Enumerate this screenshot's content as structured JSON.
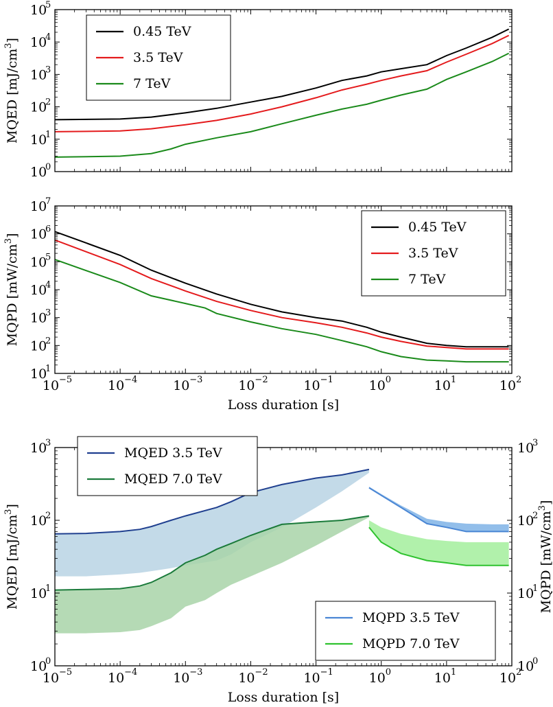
{
  "chart_data": [
    {
      "type": "line",
      "panel": "top",
      "xscale": "log",
      "yscale": "log",
      "xlim": [
        1e-05,
        100
      ],
      "ylim": [
        1,
        100000
      ],
      "xlabel": "",
      "ylabel": "MQED [mJ/cm³]",
      "ylabel_parts": [
        "MQED [mJ/cm",
        "3",
        "]"
      ],
      "legend_position": "top-left",
      "y_ticks": [
        {
          "base": "10",
          "exp": "0"
        },
        {
          "base": "10",
          "exp": "1"
        },
        {
          "base": "10",
          "exp": "2"
        },
        {
          "base": "10",
          "exp": "3"
        },
        {
          "base": "10",
          "exp": "4"
        },
        {
          "base": "10",
          "exp": "5"
        }
      ],
      "series": [
        {
          "name": "0.45 TeV",
          "color": "#000000",
          "x": [
            1e-05,
            0.0001,
            0.0003,
            0.001,
            0.003,
            0.01,
            0.03,
            0.1,
            0.25,
            0.6,
            1,
            2,
            5,
            10,
            20,
            50,
            90
          ],
          "y": [
            40,
            42,
            48,
            65,
            90,
            140,
            210,
            380,
            650,
            900,
            1200,
            1500,
            2000,
            3800,
            6500,
            14000,
            25000
          ]
        },
        {
          "name": "3.5 TeV",
          "color": "#e41a1c",
          "x": [
            1e-05,
            0.0001,
            0.0003,
            0.001,
            0.003,
            0.01,
            0.03,
            0.1,
            0.25,
            0.6,
            1,
            2,
            5,
            10,
            20,
            50,
            90
          ],
          "y": [
            17,
            18,
            21,
            28,
            38,
            60,
            100,
            190,
            330,
            500,
            650,
            900,
            1300,
            2400,
            4200,
            9000,
            16000
          ]
        },
        {
          "name": "7 TeV",
          "color": "#1a8a1a",
          "x": [
            1e-05,
            0.0001,
            0.0003,
            0.0006,
            0.001,
            0.003,
            0.01,
            0.03,
            0.1,
            0.25,
            0.6,
            1,
            2,
            5,
            10,
            20,
            50,
            90
          ],
          "y": [
            2.8,
            3,
            3.6,
            5,
            7,
            11,
            17,
            30,
            55,
            85,
            120,
            160,
            230,
            350,
            700,
            1200,
            2500,
            4500
          ]
        }
      ]
    },
    {
      "type": "line",
      "panel": "middle",
      "xscale": "log",
      "yscale": "log",
      "xlim": [
        1e-05,
        100
      ],
      "ylim": [
        10,
        10000000
      ],
      "xlabel": "Loss duration [s]",
      "ylabel": "MQPD [mW/cm³]",
      "ylabel_parts": [
        "MQPD [mW/cm",
        "3",
        "]"
      ],
      "legend_position": "top-right",
      "x_ticks": [
        {
          "base": "10",
          "exp": "−5"
        },
        {
          "base": "10",
          "exp": "−4"
        },
        {
          "base": "10",
          "exp": "−3"
        },
        {
          "base": "10",
          "exp": "−2"
        },
        {
          "base": "10",
          "exp": "−1"
        },
        {
          "base": "10",
          "exp": "0"
        },
        {
          "base": "10",
          "exp": "1"
        },
        {
          "base": "10",
          "exp": "2"
        }
      ],
      "y_ticks": [
        {
          "base": "10",
          "exp": "1"
        },
        {
          "base": "10",
          "exp": "2"
        },
        {
          "base": "10",
          "exp": "3"
        },
        {
          "base": "10",
          "exp": "4"
        },
        {
          "base": "10",
          "exp": "5"
        },
        {
          "base": "10",
          "exp": "6"
        },
        {
          "base": "10",
          "exp": "7"
        }
      ],
      "series": [
        {
          "name": "0.45 TeV",
          "color": "#000000",
          "x": [
            1e-05,
            0.0001,
            0.0003,
            0.001,
            0.003,
            0.01,
            0.03,
            0.1,
            0.25,
            0.6,
            1,
            2,
            5,
            10,
            20,
            50,
            90
          ],
          "y": [
            1200000,
            170000,
            50000,
            17000,
            7000,
            3000,
            1600,
            1000,
            750,
            450,
            300,
            200,
            120,
            100,
            90,
            90,
            90
          ]
        },
        {
          "name": "3.5 TeV",
          "color": "#e41a1c",
          "x": [
            1e-05,
            0.0001,
            0.0003,
            0.001,
            0.003,
            0.01,
            0.03,
            0.1,
            0.25,
            0.6,
            1,
            2,
            5,
            10,
            20,
            50,
            90
          ],
          "y": [
            600000,
            80000,
            25000,
            9000,
            3800,
            1800,
            1000,
            650,
            450,
            280,
            200,
            140,
            95,
            85,
            75,
            75,
            75
          ]
        },
        {
          "name": "7 TeV",
          "color": "#1a8a1a",
          "x": [
            1e-05,
            0.0001,
            0.0003,
            0.001,
            0.002,
            0.003,
            0.01,
            0.03,
            0.1,
            0.25,
            0.6,
            1,
            2,
            5,
            10,
            20,
            50,
            90
          ],
          "y": [
            120000,
            18000,
            6000,
            3200,
            2200,
            1400,
            700,
            400,
            250,
            150,
            90,
            60,
            40,
            30,
            28,
            26,
            26,
            26
          ]
        }
      ]
    },
    {
      "type": "area",
      "panel": "bottom",
      "xscale": "log",
      "yscale": "log",
      "xlim": [
        1e-05,
        100
      ],
      "ylim": [
        1,
        1000
      ],
      "xlabel": "Loss duration [s]",
      "ylabel": "MQED [mJ/cm³]",
      "ylabel_parts": [
        "MQED [mJ/cm",
        "3",
        "]"
      ],
      "y2label": "MQPD [mW/cm³]",
      "y2label_parts": [
        "MQPD [mW/cm",
        "3",
        "]"
      ],
      "legend_position": "top-left / bottom-right",
      "x_ticks": [
        {
          "base": "10",
          "exp": "−5"
        },
        {
          "base": "10",
          "exp": "−4"
        },
        {
          "base": "10",
          "exp": "−3"
        },
        {
          "base": "10",
          "exp": "−2"
        },
        {
          "base": "10",
          "exp": "−1"
        },
        {
          "base": "10",
          "exp": "0"
        },
        {
          "base": "10",
          "exp": "1"
        },
        {
          "base": "10",
          "exp": "2"
        }
      ],
      "y_ticks": [
        {
          "base": "10",
          "exp": "0"
        },
        {
          "base": "10",
          "exp": "1"
        },
        {
          "base": "10",
          "exp": "2"
        },
        {
          "base": "10",
          "exp": "3"
        }
      ],
      "series": [
        {
          "name": "MQED 3.5 TeV",
          "axis": "left",
          "color": "#1f3f8f",
          "fill": "#b8d3e4",
          "x": [
            1e-05,
            3e-05,
            0.0001,
            0.0002,
            0.0003,
            0.0006,
            0.001,
            0.003,
            0.005,
            0.01,
            0.03,
            0.1,
            0.25,
            0.65
          ],
          "y": [
            65,
            66,
            70,
            75,
            82,
            100,
            115,
            150,
            180,
            240,
            310,
            380,
            420,
            500
          ],
          "band_low": [
            17,
            17,
            18,
            19,
            20,
            22,
            24,
            28,
            34,
            50,
            80,
            150,
            250,
            450
          ]
        },
        {
          "name": "MQED 7.0 TeV",
          "axis": "left",
          "color": "#1a7a3a",
          "fill": "#a8d3a8",
          "x": [
            1e-05,
            3e-05,
            0.0001,
            0.0002,
            0.0003,
            0.0006,
            0.001,
            0.002,
            0.003,
            0.005,
            0.01,
            0.03,
            0.1,
            0.25,
            0.65
          ],
          "y": [
            11,
            11.2,
            11.5,
            12.5,
            14,
            19,
            26,
            33,
            40,
            48,
            62,
            88,
            95,
            100,
            115
          ],
          "band_low": [
            2.8,
            2.8,
            2.9,
            3.1,
            3.5,
            4.5,
            6.5,
            8,
            10,
            13,
            17,
            26,
            45,
            70,
            110
          ]
        },
        {
          "name": "MQPD 3.5 TeV",
          "axis": "right",
          "color": "#4a86d4",
          "fill": "#7fb3e6",
          "x": [
            0.65,
            1,
            2,
            5,
            10,
            20,
            50,
            90
          ],
          "y": [
            280,
            220,
            150,
            90,
            80,
            70,
            70,
            70
          ],
          "band_high": [
            290,
            230,
            160,
            105,
            95,
            90,
            88,
            88
          ]
        },
        {
          "name": "MQPD 7.0 TeV",
          "axis": "right",
          "color": "#2ec22e",
          "fill": "#a3ef9c",
          "x": [
            0.65,
            1,
            2,
            5,
            10,
            20,
            50,
            90
          ],
          "y": [
            80,
            50,
            35,
            28,
            26,
            24,
            24,
            24
          ],
          "band_high": [
            100,
            80,
            65,
            55,
            52,
            50,
            50,
            50
          ]
        }
      ]
    }
  ]
}
